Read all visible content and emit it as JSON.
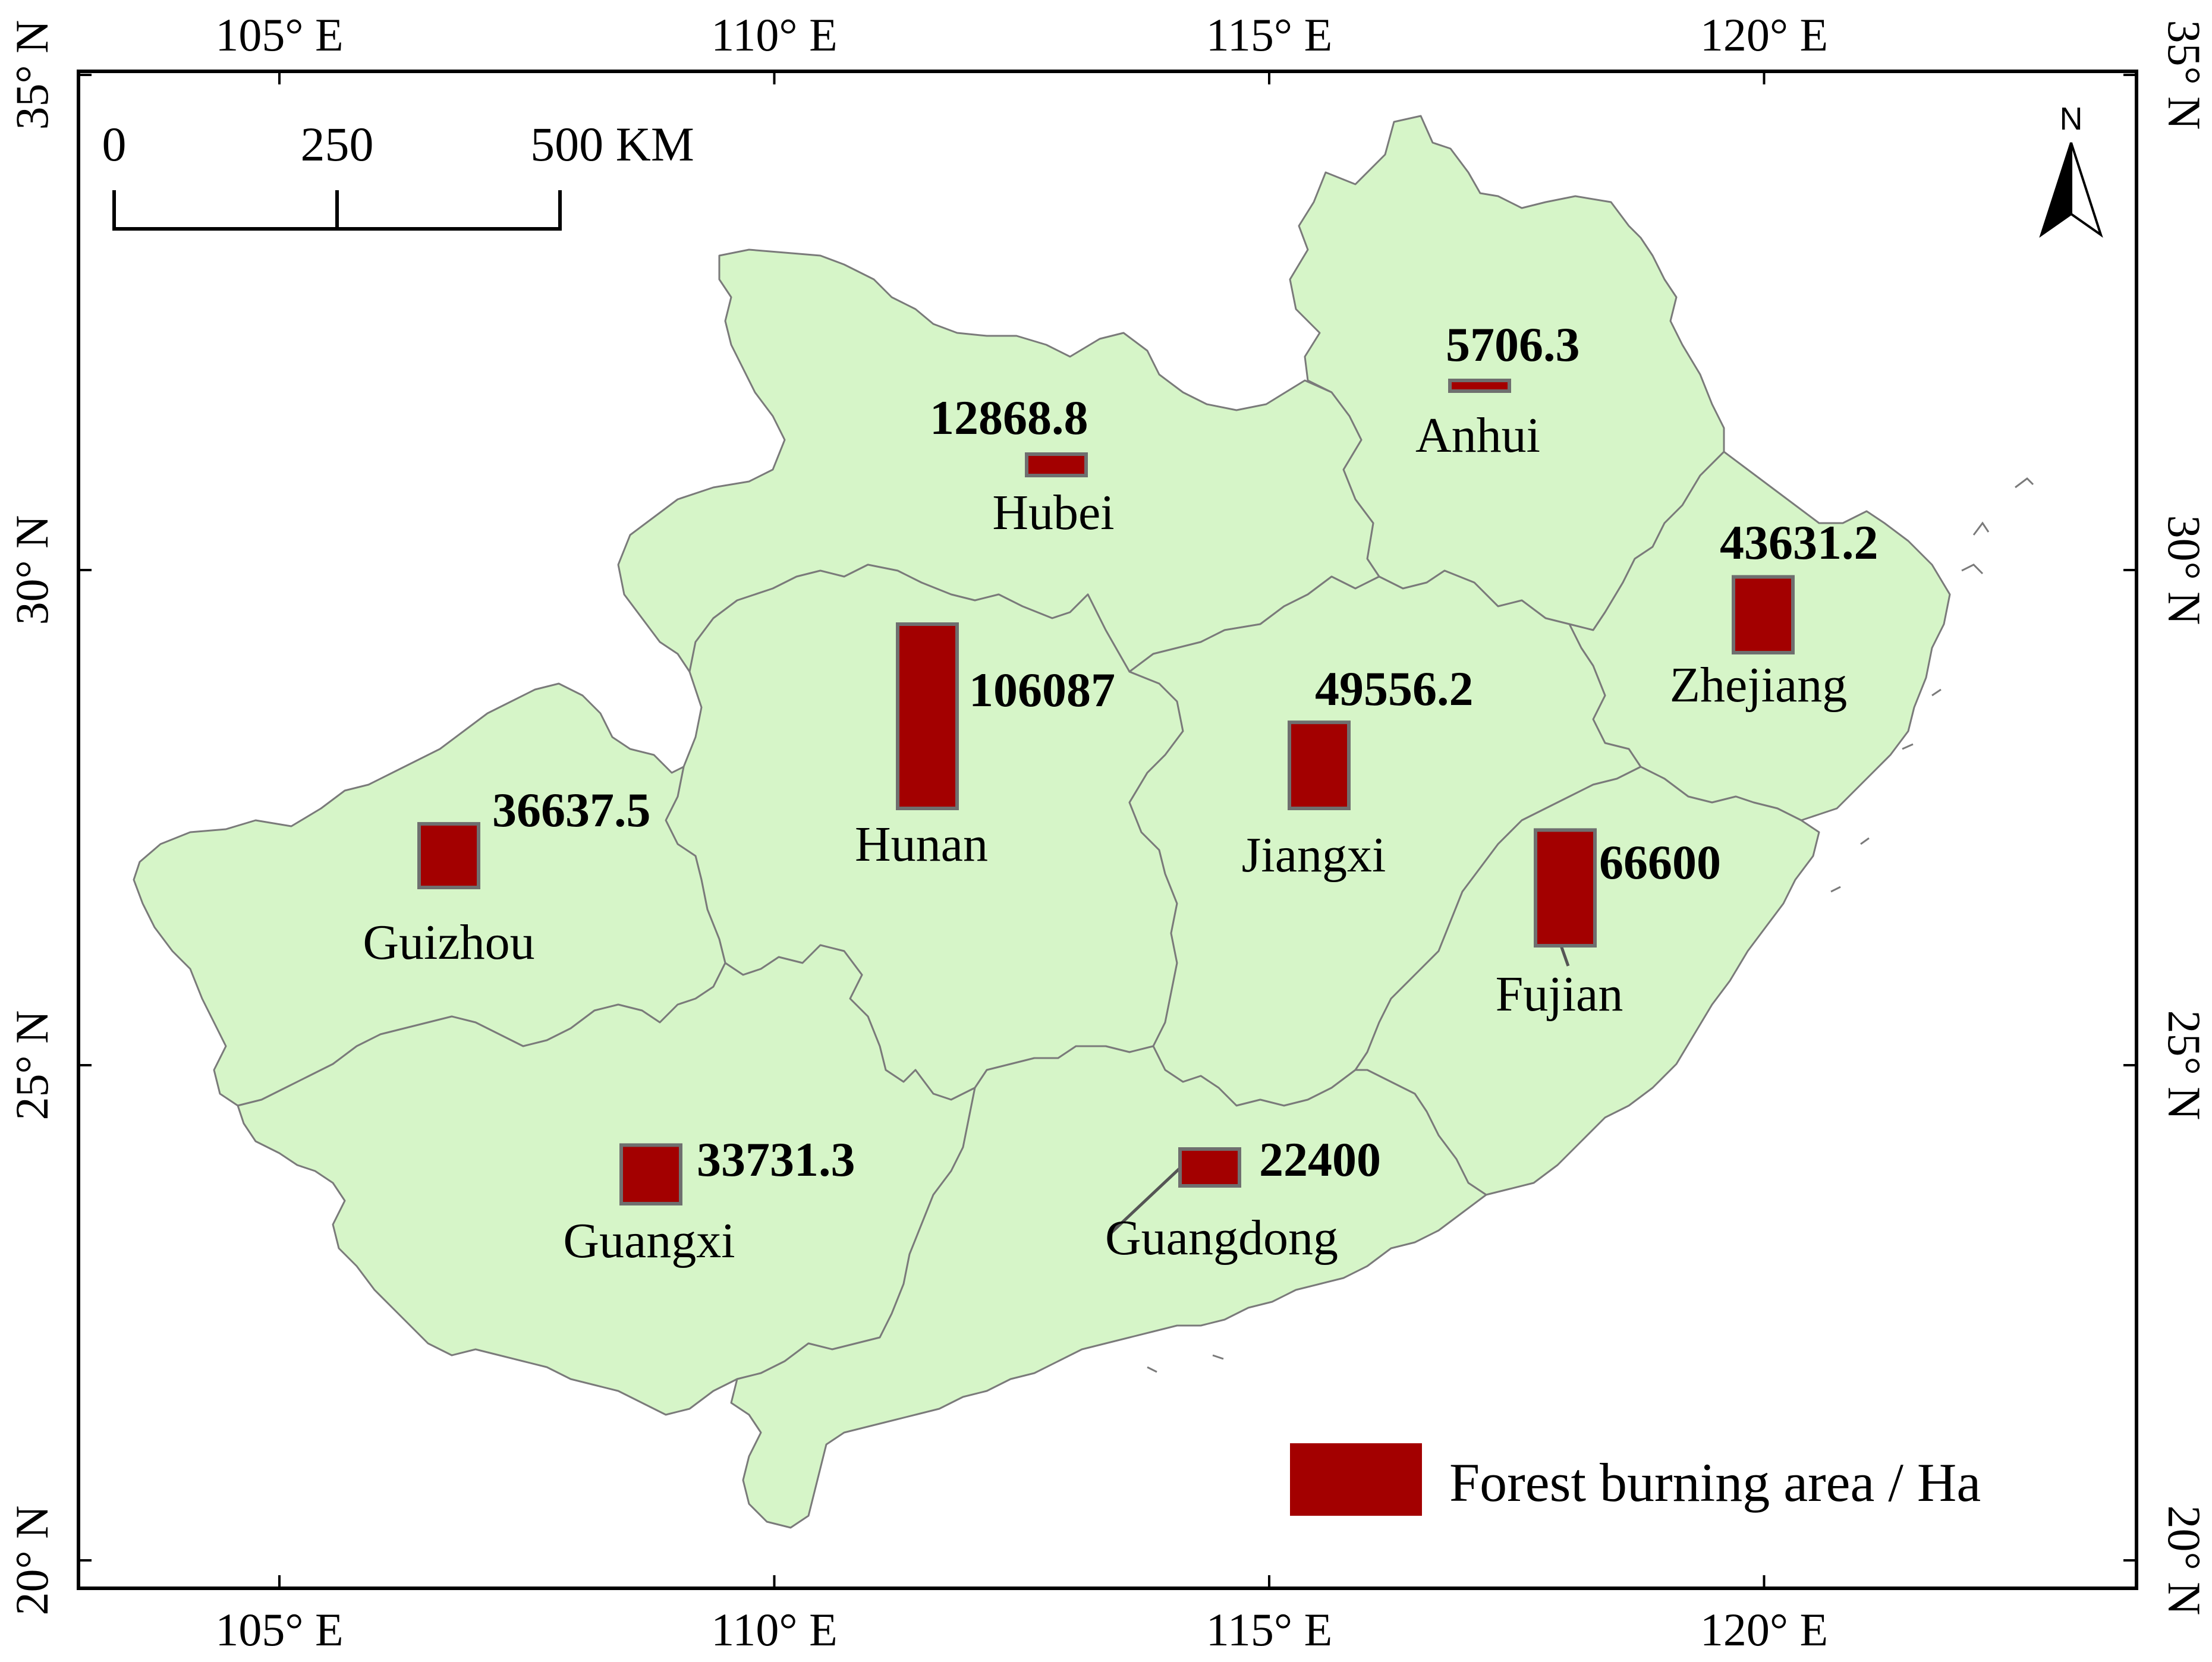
{
  "map": {
    "lon_range": [
      103.0,
      123.8
    ],
    "lat_range": [
      19.7,
      35.3
    ],
    "lon_ticks": [
      {
        "value": 105,
        "label": "105° E"
      },
      {
        "value": 110,
        "label": "110° E"
      },
      {
        "value": 115,
        "label": "115° E"
      },
      {
        "value": 120,
        "label": "120° E"
      }
    ],
    "lat_ticks": [
      {
        "value": 35,
        "label": "35° N"
      },
      {
        "value": 30,
        "label": "30° N"
      },
      {
        "value": 25,
        "label": "25° N"
      },
      {
        "value": 20,
        "label": "20° N"
      }
    ],
    "land_color": "#d6f5c8",
    "bar_color": "#a30000",
    "north_arrow": {
      "label": "N",
      "icon": "north-arrow-icon"
    },
    "scale_bar": {
      "labels": [
        "0",
        "250",
        "500 KM"
      ]
    },
    "legend": {
      "label": "Forest burning area / Ha",
      "swatch_color": "#a30000"
    },
    "provinces": [
      {
        "name": "Anhui",
        "value": 5706.3,
        "value_label": "5706.3"
      },
      {
        "name": "Hubei",
        "value": 12868.8,
        "value_label": "12868.8"
      },
      {
        "name": "Zhejiang",
        "value": 43631.2,
        "value_label": "43631.2"
      },
      {
        "name": "Hunan",
        "value": 106087,
        "value_label": "106087"
      },
      {
        "name": "Jiangxi",
        "value": 49556.2,
        "value_label": "49556.2"
      },
      {
        "name": "Guizhou",
        "value": 36637.5,
        "value_label": "36637.5"
      },
      {
        "name": "Fujian",
        "value": 66600,
        "value_label": "66600"
      },
      {
        "name": "Guangxi",
        "value": 33731.3,
        "value_label": "33731.3"
      },
      {
        "name": "Guangdong",
        "value": 22400,
        "value_label": "22400"
      }
    ]
  }
}
